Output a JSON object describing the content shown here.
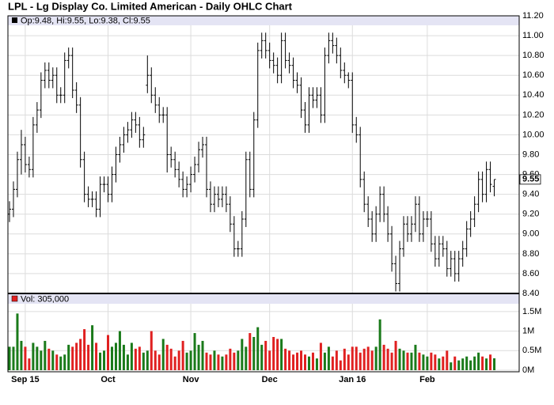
{
  "chart_data": {
    "type": "ohlc",
    "title": "LPL - Lg Display Co. Limited American - Daily OHLC Chart",
    "legend": "Op:9.48, Hi:9.55, Lo:9.38, Cl:9.55",
    "volume_legend": "Vol: 305,000",
    "ylim": [
      8.4,
      11.2
    ],
    "yticks": [
      {
        "value": 8.4,
        "label": "8.40"
      },
      {
        "value": 8.6,
        "label": "8.60"
      },
      {
        "value": 8.8,
        "label": "8.80"
      },
      {
        "value": 9.0,
        "label": "9.00"
      },
      {
        "value": 9.2,
        "label": "9.20"
      },
      {
        "value": 9.4,
        "label": "9.40"
      },
      {
        "value": 9.6,
        "label": "9.60"
      },
      {
        "value": 9.8,
        "label": "9.80"
      },
      {
        "value": 10.0,
        "label": "10.00"
      },
      {
        "value": 10.2,
        "label": "10.20"
      },
      {
        "value": 10.4,
        "label": "10.40"
      },
      {
        "value": 10.6,
        "label": "10.60"
      },
      {
        "value": 10.8,
        "label": "10.80"
      },
      {
        "value": 11.0,
        "label": "11.00"
      },
      {
        "value": 11.2,
        "label": "11.20"
      }
    ],
    "vol_ylim": [
      0,
      1700000
    ],
    "vol_yticks": [
      {
        "value": 0,
        "label": "0M"
      },
      {
        "value": 500000,
        "label": "0.5M"
      },
      {
        "value": 1000000,
        "label": "1M"
      },
      {
        "value": 1500000,
        "label": "1.5M"
      }
    ],
    "xticks": [
      {
        "value": 4,
        "label": "Sep 15"
      },
      {
        "value": 25,
        "label": "Oct"
      },
      {
        "value": 46,
        "label": "Nov"
      },
      {
        "value": 66,
        "label": "Dec"
      },
      {
        "value": 87,
        "label": "Jan 16"
      },
      {
        "value": 106,
        "label": "Feb"
      }
    ],
    "grid": true,
    "bar_color": "#000000",
    "up_color": "#1a7a1a",
    "down_color": "#e02020",
    "open": [
      9.2,
      9.25,
      9.45,
      9.75,
      9.9,
      9.7,
      9.65,
      10.1,
      10.25,
      10.55,
      10.65,
      10.55,
      10.6,
      10.4,
      10.4,
      10.75,
      10.8,
      10.45,
      10.3,
      9.75,
      9.4,
      9.35,
      9.35,
      9.25,
      9.5,
      9.5,
      9.4,
      9.6,
      9.8,
      9.9,
      10.0,
      10.05,
      10.15,
      10.1,
      9.95,
      10.5,
      10.6,
      10.4,
      10.3,
      10.2,
      10.2,
      9.8,
      9.75,
      9.65,
      9.55,
      9.45,
      9.5,
      9.6,
      9.7,
      9.85,
      9.9,
      9.45,
      9.3,
      9.4,
      9.35,
      9.4,
      9.3,
      9.1,
      8.85,
      8.85,
      9.15,
      9.75,
      9.45,
      10.15,
      10.85,
      10.95,
      10.85,
      10.75,
      10.7,
      10.6,
      10.95,
      10.75,
      10.7,
      10.55,
      10.5,
      10.25,
      10.1,
      10.4,
      10.35,
      10.4,
      10.2,
      10.8,
      10.95,
      10.9,
      10.8,
      10.65,
      10.6,
      10.55,
      10.1,
      10.0,
      9.55,
      9.3,
      9.15,
      9.0,
      9.2,
      9.4,
      9.2,
      9.0,
      8.7,
      8.5,
      8.85,
      9.1,
      9.0,
      9.1,
      9.3,
      9.0,
      9.15,
      9.15,
      8.9,
      8.75,
      8.9,
      8.85,
      8.65,
      8.75,
      8.6,
      8.75,
      8.85,
      9.05,
      9.15,
      9.3,
      9.55,
      9.4,
      9.65,
      9.48
    ],
    "high": [
      9.33,
      9.53,
      9.83,
      10.05,
      9.98,
      9.78,
      10.18,
      10.33,
      10.63,
      10.73,
      10.73,
      10.68,
      10.68,
      10.48,
      10.83,
      10.88,
      10.88,
      10.53,
      10.38,
      9.83,
      9.48,
      9.43,
      9.43,
      9.58,
      9.58,
      9.58,
      9.68,
      9.88,
      9.98,
      10.08,
      10.13,
      10.23,
      10.23,
      10.18,
      10.08,
      10.8,
      10.68,
      10.48,
      10.38,
      10.28,
      10.28,
      9.88,
      9.83,
      9.73,
      9.63,
      9.58,
      9.68,
      9.78,
      9.93,
      9.98,
      9.98,
      9.53,
      9.48,
      9.48,
      9.48,
      9.48,
      9.38,
      9.18,
      8.93,
      9.23,
      9.83,
      9.83,
      10.23,
      10.93,
      11.03,
      11.03,
      10.93,
      10.83,
      10.78,
      11.03,
      11.03,
      10.83,
      10.78,
      10.63,
      10.58,
      10.33,
      10.48,
      10.48,
      10.48,
      10.48,
      10.88,
      11.03,
      11.03,
      10.98,
      10.88,
      10.73,
      10.63,
      10.63,
      10.18,
      10.08,
      9.63,
      9.38,
      9.23,
      9.28,
      9.48,
      9.48,
      9.28,
      9.08,
      8.78,
      8.93,
      9.18,
      9.18,
      9.18,
      9.38,
      9.38,
      9.23,
      9.23,
      9.23,
      8.98,
      8.98,
      8.98,
      8.93,
      8.83,
      8.83,
      8.83,
      8.93,
      9.13,
      9.23,
      9.38,
      9.63,
      9.63,
      9.73,
      9.73,
      9.55
    ],
    "low": [
      9.12,
      9.17,
      9.37,
      9.6,
      9.62,
      9.57,
      9.57,
      10.02,
      10.17,
      10.47,
      10.47,
      10.47,
      10.32,
      10.32,
      10.32,
      10.67,
      10.37,
      10.22,
      9.67,
      9.32,
      9.27,
      9.27,
      9.17,
      9.17,
      9.42,
      9.32,
      9.32,
      9.52,
      9.72,
      9.82,
      9.92,
      9.97,
      10.02,
      9.87,
      9.87,
      10.42,
      10.32,
      10.22,
      10.12,
      10.12,
      9.62,
      9.67,
      9.57,
      9.47,
      9.37,
      9.37,
      9.42,
      9.52,
      9.62,
      9.77,
      9.37,
      9.22,
      9.22,
      9.27,
      9.27,
      9.22,
      9.02,
      8.77,
      8.77,
      8.77,
      9.07,
      9.37,
      9.37,
      10.07,
      10.77,
      10.77,
      10.67,
      10.62,
      10.52,
      10.52,
      10.67,
      10.62,
      10.47,
      10.42,
      10.17,
      10.02,
      10.02,
      10.27,
      10.27,
      10.12,
      10.12,
      10.72,
      10.82,
      10.72,
      10.57,
      10.52,
      10.47,
      10.02,
      9.92,
      9.47,
      9.22,
      9.07,
      8.92,
      8.92,
      9.12,
      9.12,
      8.92,
      8.62,
      8.42,
      8.42,
      8.77,
      8.92,
      8.92,
      9.02,
      8.92,
      8.92,
      9.07,
      8.82,
      8.67,
      8.67,
      8.77,
      8.57,
      8.57,
      8.52,
      8.52,
      8.67,
      8.77,
      8.97,
      9.07,
      9.22,
      9.32,
      9.32,
      9.42,
      9.38
    ],
    "close": [
      9.25,
      9.45,
      9.75,
      9.9,
      9.7,
      9.65,
      10.1,
      10.25,
      10.55,
      10.65,
      10.55,
      10.6,
      10.4,
      10.4,
      10.75,
      10.8,
      10.45,
      10.3,
      9.75,
      9.4,
      9.35,
      9.35,
      9.25,
      9.5,
      9.5,
      9.4,
      9.6,
      9.8,
      9.9,
      10.0,
      10.05,
      10.15,
      10.1,
      9.95,
      10.0,
      10.6,
      10.4,
      10.3,
      10.2,
      10.2,
      9.8,
      9.75,
      9.65,
      9.55,
      9.45,
      9.5,
      9.6,
      9.7,
      9.85,
      9.9,
      9.45,
      9.3,
      9.4,
      9.35,
      9.4,
      9.3,
      9.1,
      8.85,
      8.85,
      9.15,
      9.75,
      9.45,
      10.15,
      10.85,
      10.95,
      10.85,
      10.75,
      10.7,
      10.6,
      10.95,
      10.75,
      10.7,
      10.55,
      10.5,
      10.25,
      10.1,
      10.4,
      10.35,
      10.4,
      10.2,
      10.8,
      10.95,
      10.9,
      10.8,
      10.65,
      10.6,
      10.55,
      10.1,
      10.0,
      9.55,
      9.3,
      9.15,
      9.0,
      9.2,
      9.4,
      9.2,
      9.0,
      8.7,
      8.5,
      8.85,
      9.1,
      9.0,
      9.1,
      9.3,
      9.0,
      9.15,
      9.15,
      8.9,
      8.75,
      8.9,
      8.85,
      8.65,
      8.75,
      8.6,
      8.75,
      8.85,
      9.05,
      9.15,
      9.3,
      9.55,
      9.4,
      9.65,
      9.5,
      9.55
    ],
    "volume": [
      600000,
      600000,
      1450000,
      750000,
      600000,
      300000,
      700000,
      600000,
      500000,
      750000,
      550000,
      500000,
      400000,
      350000,
      400000,
      650000,
      600000,
      700000,
      800000,
      1050000,
      650000,
      1150000,
      700000,
      450000,
      500000,
      900000,
      600000,
      700000,
      1000000,
      650000,
      400000,
      700000,
      550000,
      600000,
      450000,
      500000,
      1000000,
      500000,
      400000,
      800000,
      650000,
      550000,
      350000,
      500000,
      750000,
      450000,
      500000,
      950000,
      650000,
      750000,
      450000,
      400000,
      500000,
      400000,
      350000,
      400000,
      550000,
      450000,
      500000,
      800000,
      600000,
      950000,
      850000,
      1100000,
      650000,
      750000,
      500000,
      850000,
      800000,
      800000,
      550000,
      500000,
      400000,
      450000,
      500000,
      400000,
      350000,
      450000,
      300000,
      700000,
      450000,
      600000,
      350000,
      500000,
      250000,
      550000,
      400000,
      600000,
      600000,
      450000,
      550000,
      600000,
      500000,
      600000,
      1300000,
      650000,
      550000,
      450000,
      750000,
      550000,
      500000,
      450000,
      450000,
      650000,
      450000,
      400000,
      350000,
      450000,
      400000,
      300000,
      350000,
      500000,
      200000,
      350000,
      250000,
      300000,
      350000,
      250000,
      350000,
      450000,
      350000,
      300000,
      400000,
      305000
    ]
  }
}
